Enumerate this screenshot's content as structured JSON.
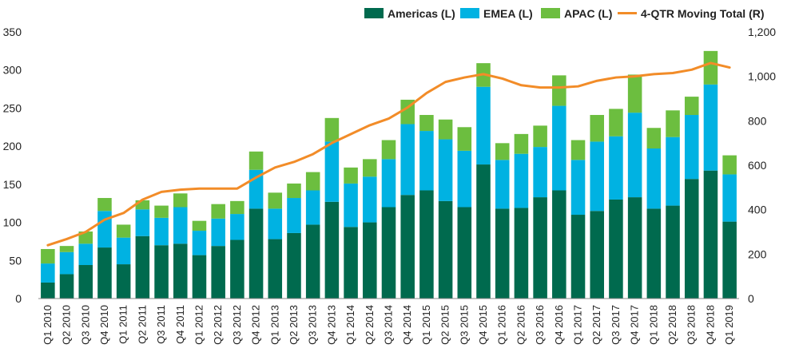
{
  "chart_data": {
    "type": "bar",
    "stacked": true,
    "categories": [
      "Q1 2010",
      "Q2 2010",
      "Q3 2010",
      "Q4 2010",
      "Q1 2011",
      "Q2 2011",
      "Q3 2011",
      "Q4 2011",
      "Q1 2012",
      "Q2 2012",
      "Q3 2012",
      "Q4 2012",
      "Q1 2013",
      "Q2 2013",
      "Q3 2013",
      "Q4 2013",
      "Q1 2014",
      "Q2 2014",
      "Q3 2014",
      "Q4 2014",
      "Q1 2015",
      "Q2 2015",
      "Q3 2015",
      "Q4 2015",
      "Q1 2016",
      "Q2 2016",
      "Q3 2016",
      "Q4 2016",
      "Q1 2017",
      "Q2 2017",
      "Q3 2017",
      "Q4 2017",
      "Q1 2018",
      "Q2 2018",
      "Q3 2018",
      "Q4 2018",
      "Q1 2019"
    ],
    "series": [
      {
        "name": "Americas (L)",
        "color": "#006a4e",
        "axis": "left",
        "values": [
          21,
          32,
          44,
          67,
          45,
          82,
          70,
          72,
          57,
          69,
          77,
          118,
          78,
          86,
          97,
          127,
          94,
          100,
          120,
          136,
          142,
          128,
          120,
          176,
          118,
          119,
          133,
          142,
          110,
          115,
          130,
          133,
          118,
          122,
          157,
          168,
          101
        ]
      },
      {
        "name": "EMEA (L)",
        "color": "#00b2e2",
        "axis": "left",
        "values": [
          25,
          29,
          28,
          48,
          35,
          35,
          36,
          48,
          32,
          36,
          34,
          51,
          40,
          46,
          45,
          79,
          57,
          60,
          63,
          93,
          78,
          81,
          74,
          102,
          64,
          71,
          66,
          111,
          72,
          91,
          83,
          111,
          79,
          90,
          84,
          113,
          62
        ]
      },
      {
        "name": "APAC (L)",
        "color": "#6cbe3f",
        "axis": "left",
        "values": [
          19,
          8,
          16,
          17,
          17,
          12,
          16,
          18,
          13,
          19,
          17,
          24,
          21,
          19,
          24,
          31,
          21,
          23,
          25,
          32,
          21,
          26,
          31,
          31,
          22,
          26,
          28,
          40,
          26,
          35,
          36,
          50,
          27,
          35,
          24,
          44,
          25
        ]
      },
      {
        "name": "4-QTR Moving Total (R)",
        "type": "line",
        "color": "#f28c28",
        "axis": "right",
        "values": [
          240,
          268,
          300,
          355,
          385,
          445,
          480,
          490,
          495,
          495,
          495,
          545,
          590,
          615,
          650,
          700,
          740,
          780,
          810,
          860,
          925,
          975,
          995,
          1010,
          990,
          960,
          950,
          950,
          955,
          980,
          995,
          1000,
          1010,
          1015,
          1030,
          1060,
          1040
        ]
      }
    ],
    "y_left": {
      "min": 0,
      "max": 350,
      "ticks": [
        0,
        50,
        100,
        150,
        200,
        250,
        300,
        350
      ]
    },
    "y_right": {
      "min": 0,
      "max": 1200,
      "ticks": [
        0,
        200,
        400,
        600,
        800,
        1000,
        1200
      ],
      "tick_labels": [
        "0",
        "200",
        "400",
        "600",
        "800",
        "1,000",
        "1,200"
      ]
    },
    "legend": {
      "position": "top-right"
    },
    "grid": false,
    "title": "",
    "xlabel": "",
    "ylabel": ""
  }
}
